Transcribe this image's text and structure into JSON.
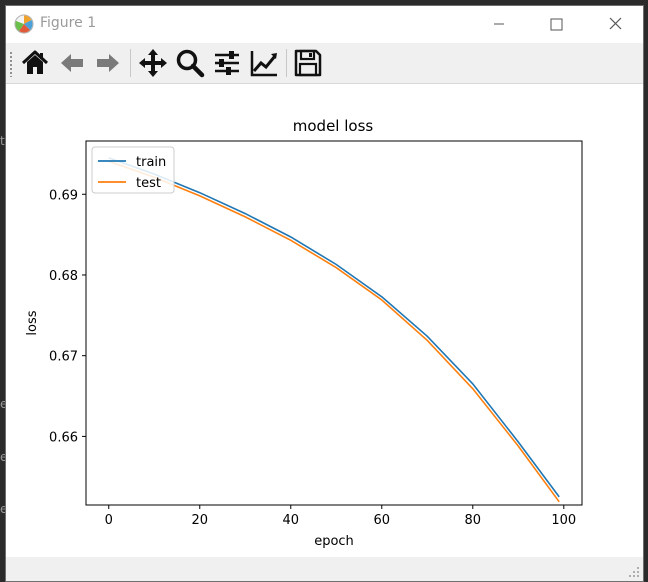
{
  "window": {
    "title": "Figure 1"
  },
  "toolbar": {
    "buttons": [
      {
        "name": "home-button",
        "icon": "home-icon"
      },
      {
        "name": "back-button",
        "icon": "arrow-left-icon"
      },
      {
        "name": "forward-button",
        "icon": "arrow-right-icon"
      },
      {
        "name": "pan-button",
        "icon": "move-icon"
      },
      {
        "name": "zoom-button",
        "icon": "magnifier-icon"
      },
      {
        "name": "configure-subplots-button",
        "icon": "sliders-icon"
      },
      {
        "name": "edit-axis-button",
        "icon": "chart-line-icon"
      },
      {
        "name": "save-button",
        "icon": "floppy-disk-icon"
      }
    ]
  },
  "chart_data": {
    "type": "line",
    "title": "model loss",
    "xlabel": "epoch",
    "ylabel": "loss",
    "xlim": [
      -5,
      104
    ],
    "ylim": [
      0.6515,
      0.6966
    ],
    "xticks": [
      0,
      20,
      40,
      60,
      80,
      100
    ],
    "yticks": [
      0.66,
      0.67,
      0.68,
      0.69
    ],
    "ytick_labels": [
      "0.66",
      "0.67",
      "0.68",
      "0.69"
    ],
    "grid": false,
    "legend_position": "top-left",
    "x": [
      0,
      10,
      20,
      30,
      40,
      50,
      60,
      70,
      80,
      90,
      99
    ],
    "series": [
      {
        "name": "train",
        "color": "#1f77b4",
        "values": [
          0.6945,
          0.6925,
          0.6902,
          0.6876,
          0.6847,
          0.6813,
          0.6773,
          0.6724,
          0.6665,
          0.6593,
          0.6525
        ]
      },
      {
        "name": "test",
        "color": "#ff7f0e",
        "values": [
          0.6941,
          0.6921,
          0.6898,
          0.6872,
          0.6843,
          0.6809,
          0.6769,
          0.6719,
          0.6659,
          0.6588,
          0.6519
        ]
      }
    ]
  }
}
